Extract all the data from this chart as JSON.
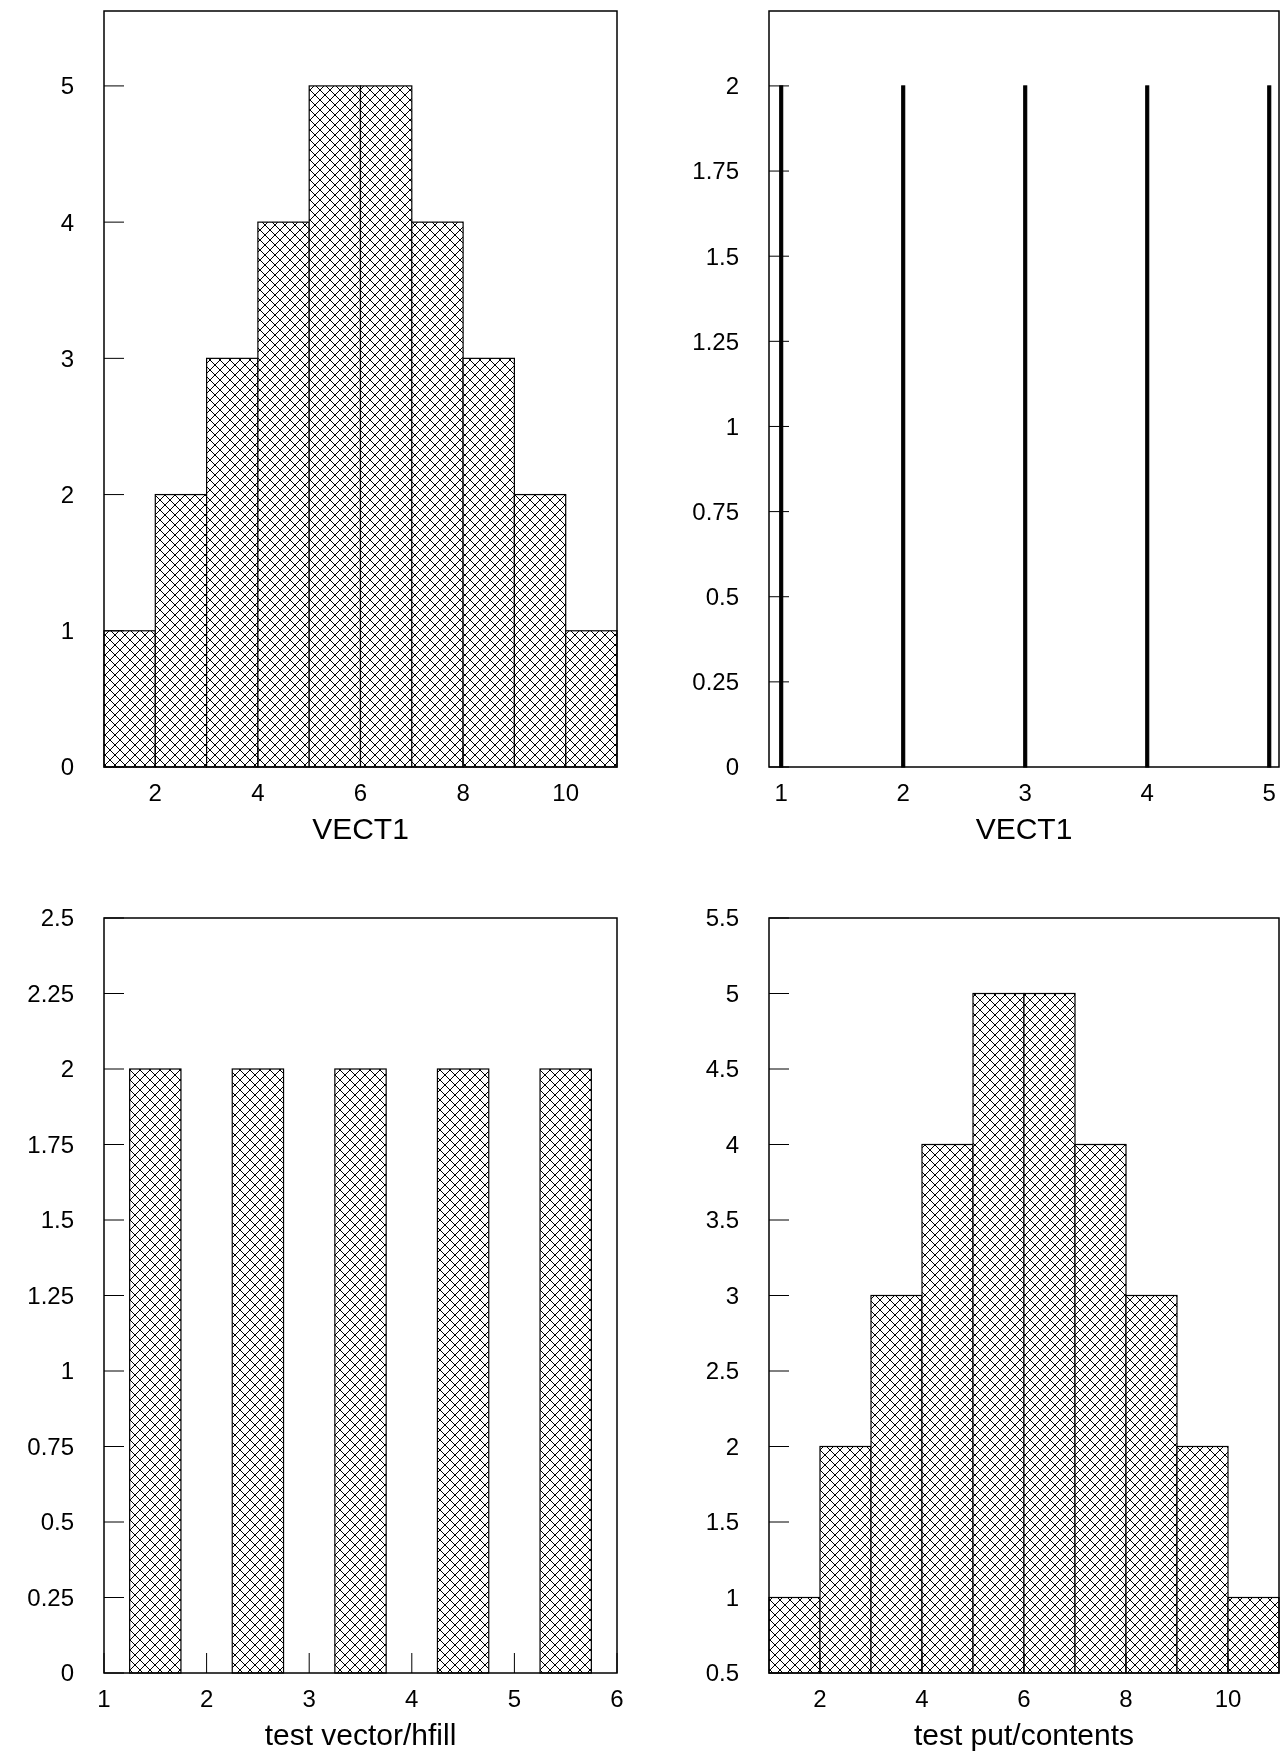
{
  "chart_data": [
    {
      "type": "histogram",
      "xlabel": "VECT1",
      "bins": [
        1,
        2,
        3,
        4,
        5,
        6,
        7,
        8,
        9,
        10,
        11
      ],
      "values": [
        1,
        2,
        3,
        4,
        5,
        5,
        4,
        3,
        2,
        1
      ],
      "color": "#000000",
      "xlim": [
        1,
        11
      ],
      "xticks": [
        2,
        4,
        6,
        8,
        10
      ],
      "ylim": [
        0,
        5.55
      ],
      "yticks": [
        0,
        1,
        2,
        3,
        4,
        5
      ]
    },
    {
      "type": "bar",
      "xlabel": "VECT1",
      "x": [
        1,
        2,
        3,
        4,
        5
      ],
      "values": [
        2,
        2,
        2,
        2,
        2
      ],
      "color": "#000000",
      "xlim": [
        0.9,
        5.08
      ],
      "xticks": [
        1,
        2,
        3,
        4,
        5
      ],
      "ylim": [
        0,
        2.22
      ],
      "yticks": [
        0,
        0.25,
        0.5,
        0.75,
        1,
        1.25,
        1.5,
        1.75,
        2
      ]
    },
    {
      "type": "bar",
      "xlabel": "test vector/hfill",
      "x": [
        1.5,
        2.5,
        3.5,
        4.5,
        5.5
      ],
      "values": [
        2,
        2,
        2,
        2,
        2
      ],
      "color": "#000000",
      "xlim": [
        1,
        6
      ],
      "xticks": [
        1,
        2,
        3,
        4,
        5,
        6
      ],
      "ylim": [
        0,
        2.5
      ],
      "yticks": [
        0,
        0.25,
        0.5,
        0.75,
        1,
        1.25,
        1.5,
        1.75,
        2,
        2.25,
        2.5
      ]
    },
    {
      "type": "histogram",
      "xlabel": "test put/contents",
      "bins": [
        1,
        2,
        3,
        4,
        5,
        6,
        7,
        8,
        9,
        10,
        11
      ],
      "values": [
        1,
        2,
        3,
        4,
        5,
        5,
        4,
        3,
        2,
        1
      ],
      "color": "#000000",
      "xlim": [
        1,
        11
      ],
      "xticks": [
        2,
        4,
        6,
        8,
        10
      ],
      "ylim": [
        0.5,
        5.5
      ],
      "yticks": [
        0.5,
        1,
        1.5,
        2,
        2.5,
        3,
        3.5,
        4,
        4.5,
        5,
        5.5
      ]
    }
  ]
}
